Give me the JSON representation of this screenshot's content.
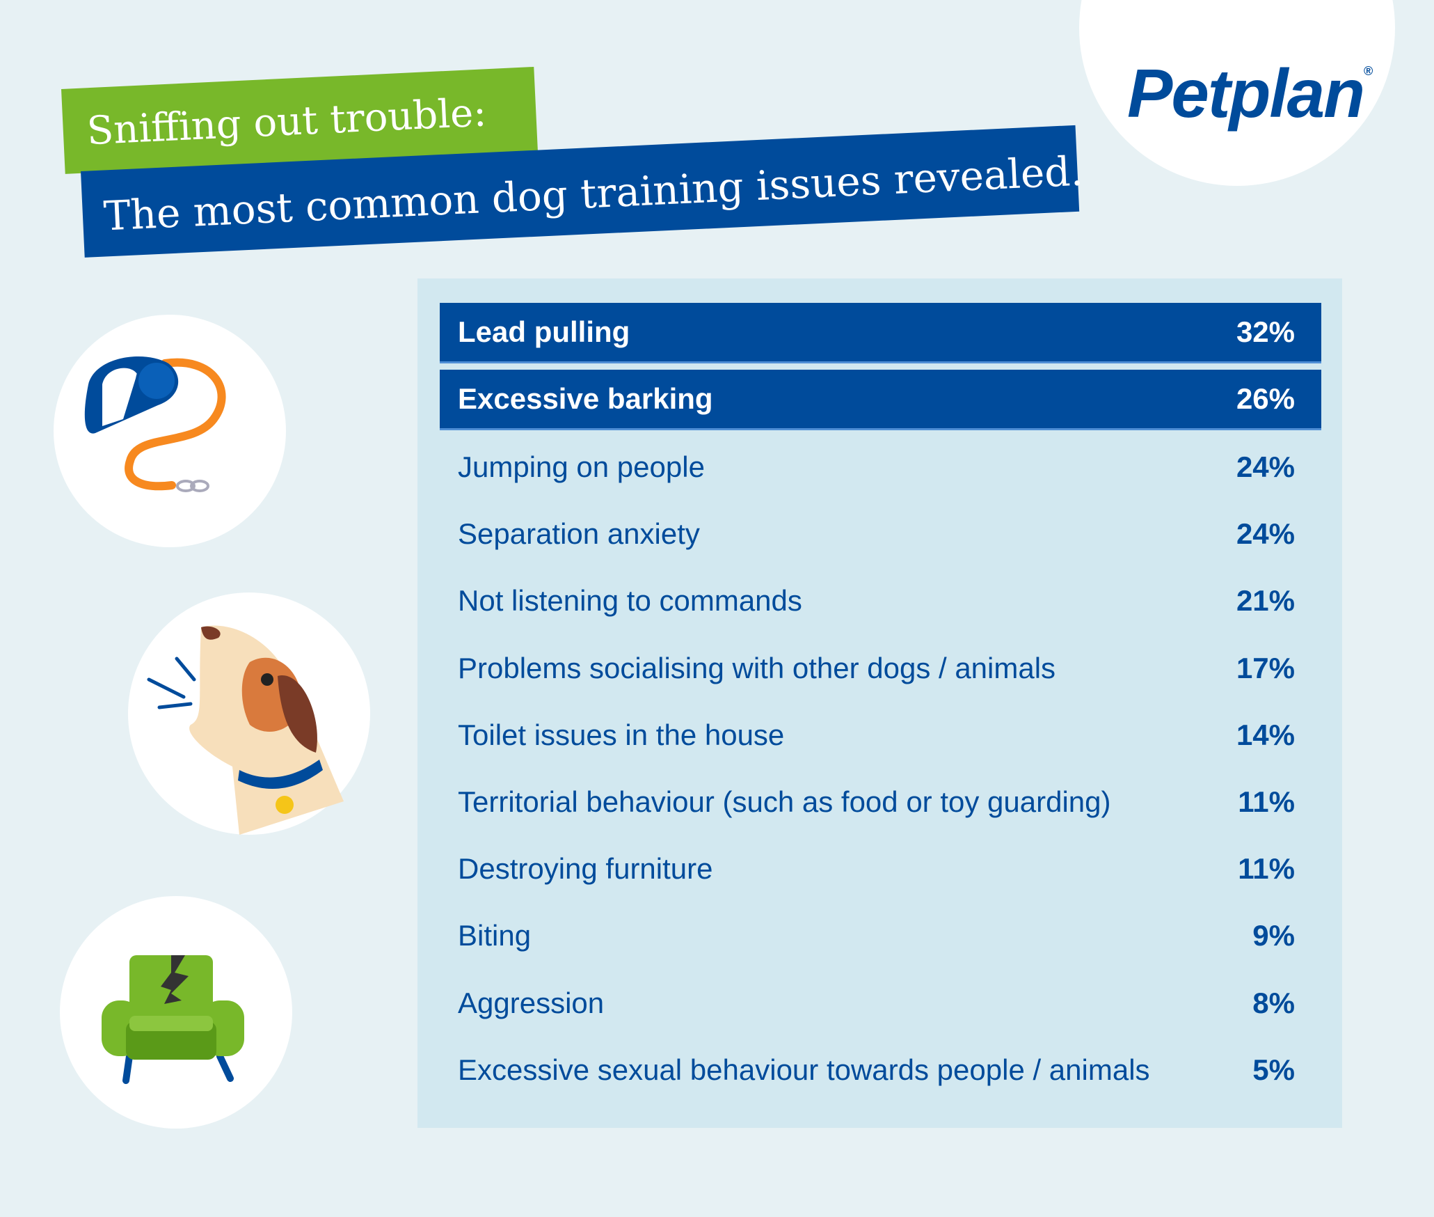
{
  "header": {
    "title_line1": "Sniffing out trouble:",
    "title_line2": "The most common dog training issues revealed.",
    "logo": "Petplan",
    "logo_mark": "®"
  },
  "colors": {
    "brand_blue": "#004b9b",
    "green": "#78b82a",
    "orange": "#f7891f",
    "background": "#e7f1f4",
    "panel": "#d2e8f0"
  },
  "icons": [
    "retractable-leash-icon",
    "barking-dog-icon",
    "torn-armchair-icon"
  ],
  "issues": [
    {
      "label": "Lead pulling",
      "value": "32%",
      "highlight": true
    },
    {
      "label": "Excessive barking",
      "value": "26%",
      "highlight": true
    },
    {
      "label": "Jumping on people",
      "value": "24%"
    },
    {
      "label": "Separation anxiety",
      "value": "24%"
    },
    {
      "label": "Not listening to commands",
      "value": "21%"
    },
    {
      "label": "Problems socialising with other dogs / animals",
      "value": "17%"
    },
    {
      "label": "Toilet issues in the house",
      "value": "14%"
    },
    {
      "label": "Territorial behaviour (such as food or toy guarding)",
      "value": "11%"
    },
    {
      "label": "Destroying furniture",
      "value": "11%"
    },
    {
      "label": "Biting",
      "value": "9%"
    },
    {
      "label": "Aggression",
      "value": "8%"
    },
    {
      "label": "Excessive sexual behaviour towards people / animals",
      "value": "5%"
    }
  ]
}
